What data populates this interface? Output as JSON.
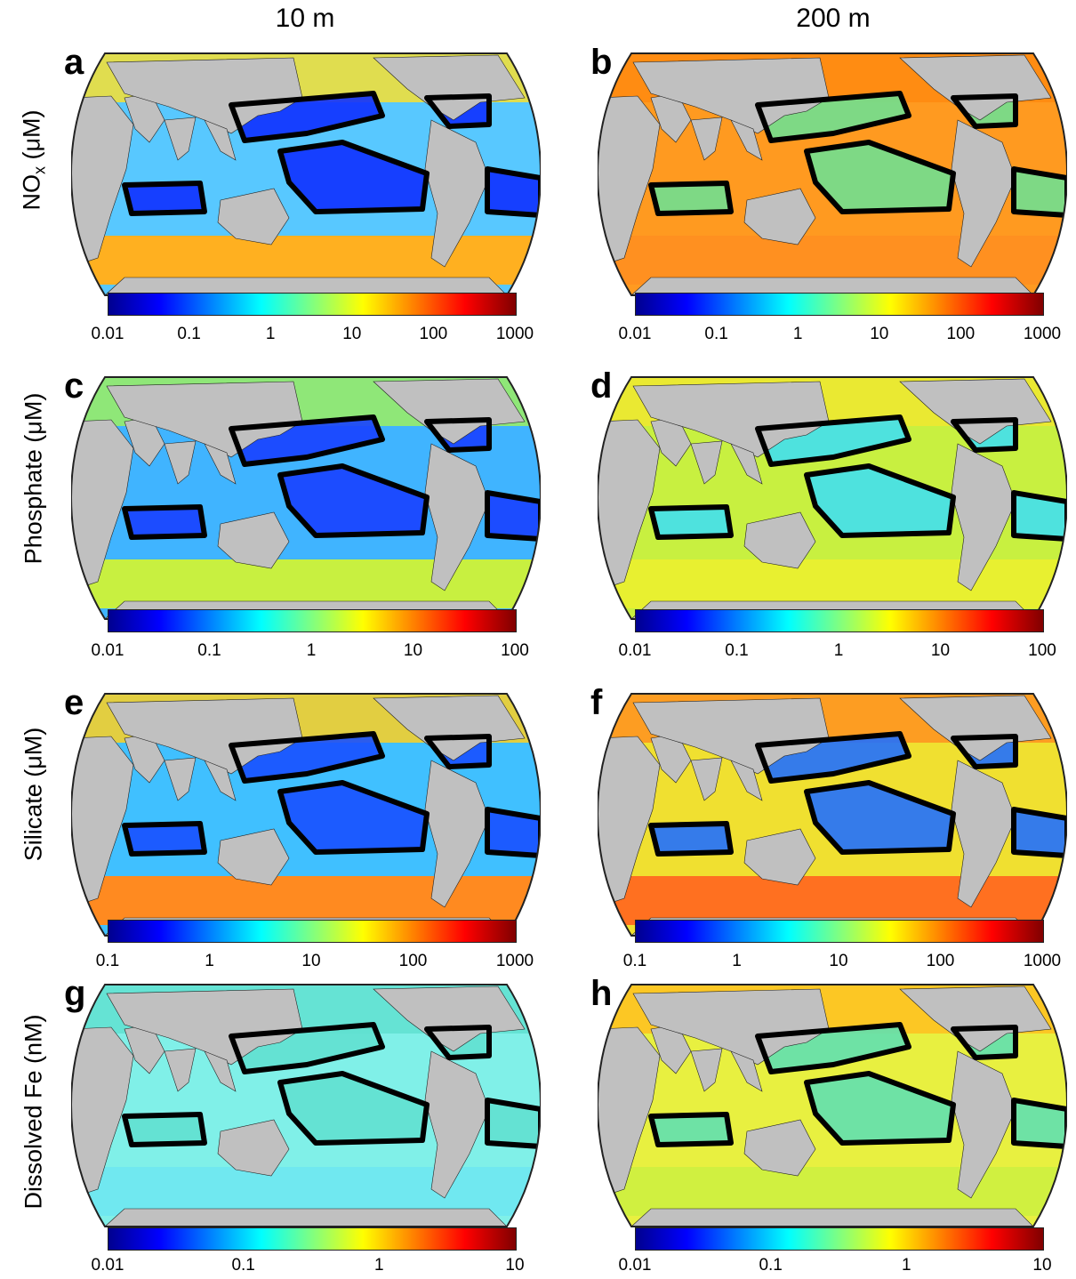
{
  "column_titles": [
    "10 m",
    "200 m"
  ],
  "row_labels": [
    {
      "main": "NO",
      "sub": "x",
      "unit": " (μM)"
    },
    {
      "main": "Phosphate (μM)",
      "sub": "",
      "unit": ""
    },
    {
      "main": "Silicate (μM)",
      "sub": "",
      "unit": ""
    },
    {
      "main": "Dissolved Fe (nM)",
      "sub": "",
      "unit": ""
    }
  ],
  "panels": [
    {
      "letter": "a",
      "variable": "NOx",
      "depth": "10 m",
      "palette": "no3_10"
    },
    {
      "letter": "b",
      "variable": "NOx",
      "depth": "200 m",
      "palette": "no3_200"
    },
    {
      "letter": "c",
      "variable": "Phosphate",
      "depth": "10 m",
      "palette": "po4_10"
    },
    {
      "letter": "d",
      "variable": "Phosphate",
      "depth": "200 m",
      "palette": "po4_200"
    },
    {
      "letter": "e",
      "variable": "Silicate",
      "depth": "10 m",
      "palette": "si_10"
    },
    {
      "letter": "f",
      "variable": "Silicate",
      "depth": "200 m",
      "palette": "si_200"
    },
    {
      "letter": "g",
      "variable": "Dissolved Fe",
      "depth": "10 m",
      "palette": "fe_10"
    },
    {
      "letter": "h",
      "variable": "Dissolved Fe",
      "depth": "200 m",
      "palette": "fe_200"
    }
  ],
  "colorbars": [
    {
      "ticks": [
        "0.01",
        "0.1",
        "1",
        "10",
        "100",
        "1000"
      ]
    },
    {
      "ticks": [
        "0.01",
        "0.1",
        "1",
        "10",
        "100",
        "1000"
      ]
    },
    {
      "ticks": [
        "0.01",
        "0.1",
        "1",
        "10",
        "100"
      ]
    },
    {
      "ticks": [
        "0.01",
        "0.1",
        "1",
        "10",
        "100"
      ]
    },
    {
      "ticks": [
        "0.1",
        "1",
        "10",
        "100",
        "1000"
      ]
    },
    {
      "ticks": [
        "0.1",
        "1",
        "10",
        "100",
        "1000"
      ]
    },
    {
      "ticks": [
        "0.01",
        "0.1",
        "1",
        "10"
      ]
    },
    {
      "ticks": [
        "0.01",
        "0.1",
        "1",
        "10"
      ]
    }
  ],
  "colormap": [
    "#00008f",
    "#0000ff",
    "#0080ff",
    "#00ffff",
    "#80ff80",
    "#ffff00",
    "#ff8000",
    "#ff0000",
    "#800000"
  ],
  "land_color": "#c0c0c0",
  "region_outline_color": "#000000"
}
